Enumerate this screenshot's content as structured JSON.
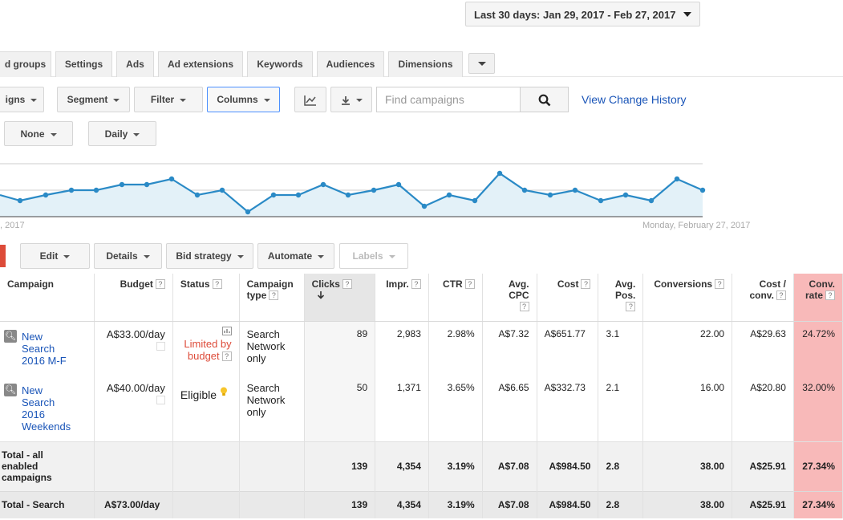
{
  "daterange": {
    "label": "Last 30 days: Jan 29, 2017 - Feb 27, 2017"
  },
  "tabs": [
    {
      "label": "d groups"
    },
    {
      "label": "Settings"
    },
    {
      "label": "Ads"
    },
    {
      "label": "Ad extensions"
    },
    {
      "label": "Keywords"
    },
    {
      "label": "Audiences"
    },
    {
      "label": "Dimensions"
    }
  ],
  "toolbar": {
    "campaigns_label": "igns",
    "segment_label": "Segment",
    "filter_label": "Filter",
    "columns_label": "Columns",
    "search_placeholder": "Find campaigns",
    "view_change_history": "View Change History",
    "none_label": "None",
    "daily_label": "Daily"
  },
  "chart": {
    "left_date": ", 2017",
    "right_date": "Monday, February 27, 2017"
  },
  "actions": {
    "edit": "Edit",
    "details": "Details",
    "bid_strategy": "Bid strategy",
    "automate": "Automate",
    "labels": "Labels"
  },
  "table": {
    "headers": {
      "campaign": "Campaign",
      "budget": "Budget",
      "status": "Status",
      "campaign_type_1": "Campaign",
      "campaign_type_2": "type",
      "clicks": "Clicks",
      "impr": "Impr.",
      "ctr": "CTR",
      "avg_cpc_1": "Avg.",
      "avg_cpc_2": "CPC",
      "cost": "Cost",
      "avg_pos_1": "Avg.",
      "avg_pos_2": "Pos.",
      "conversions": "Conversions",
      "cost_conv_1": "Cost /",
      "cost_conv_2": "conv.",
      "conv_rate_1": "Conv.",
      "conv_rate_2": "rate",
      "help": "?"
    },
    "rows": [
      {
        "campaign": [
          "New",
          "Search",
          "2016 M-F"
        ],
        "budget": "A$33.00/day",
        "status": [
          "Limited by",
          "budget"
        ],
        "type": [
          "Search",
          "Network",
          "only"
        ],
        "clicks": "89",
        "impr": "2,983",
        "ctr": "2.98%",
        "avg_cpc": "A$7.32",
        "cost": "A$651.77",
        "avg_pos": "3.1",
        "conversions": "22.00",
        "cost_conv": "A$29.63",
        "conv_rate": "24.72%"
      },
      {
        "campaign": [
          "New",
          "Search",
          "2016",
          "Weekends"
        ],
        "budget": "A$40.00/day",
        "status": [
          "Eligible"
        ],
        "type": [
          "Search",
          "Network",
          "only"
        ],
        "clicks": "50",
        "impr": "1,371",
        "ctr": "3.65%",
        "avg_cpc": "A$6.65",
        "cost": "A$332.73",
        "avg_pos": "2.1",
        "conversions": "16.00",
        "cost_conv": "A$20.80",
        "conv_rate": "32.00%"
      }
    ],
    "total_all": {
      "label": [
        "Total - all",
        "enabled",
        "campaigns"
      ],
      "clicks": "139",
      "impr": "4,354",
      "ctr": "3.19%",
      "avg_cpc": "A$7.08",
      "cost": "A$984.50",
      "avg_pos": "2.8",
      "conversions": "38.00",
      "cost_conv": "A$25.91",
      "conv_rate": "27.34%"
    },
    "total_search": {
      "label": "Total - Search",
      "budget": "A$73.00/day",
      "clicks": "139",
      "impr": "4,354",
      "ctr": "3.19%",
      "avg_cpc": "A$7.08",
      "cost": "A$984.50",
      "avg_pos": "2.8",
      "conversions": "38.00",
      "cost_conv": "A$25.91",
      "conv_rate": "27.34%"
    }
  },
  "colors": {
    "line": "#2a8ac6",
    "fill": "#e3f1f8",
    "link": "#1a55b8",
    "warning": "#dd4b39",
    "highlight": "#f8b9b9"
  }
}
